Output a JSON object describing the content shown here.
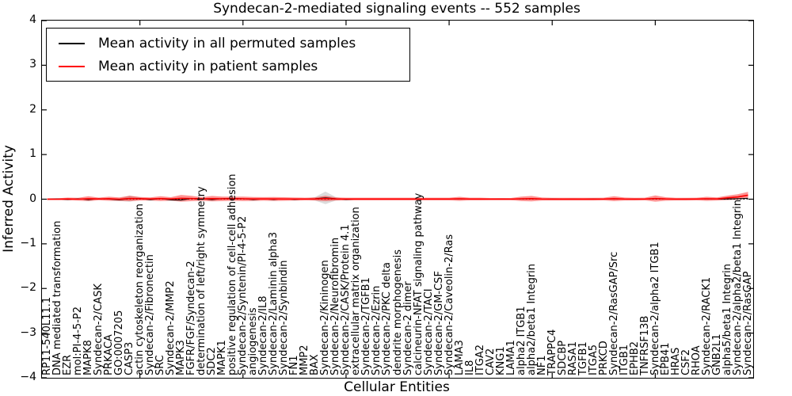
{
  "title": "Syndecan-2-mediated signaling events -- 552 samples",
  "axes": {
    "xlabel": "Cellular Entities",
    "ylabel": "Inferred Activity",
    "yticks": [
      "4",
      "3",
      "2",
      "1",
      "0",
      "−1",
      "−2",
      "−3",
      "−4"
    ],
    "ylim": [
      -4,
      4
    ]
  },
  "legend": {
    "items": [
      {
        "label": "Mean activity in all permuted samples",
        "color": "#000000"
      },
      {
        "label": "Mean activity in patient samples",
        "color": "#ff0000"
      }
    ]
  },
  "chart_data": {
    "type": "line",
    "title": "Syndecan-2-mediated signaling events -- 552 samples",
    "xlabel": "Cellular Entities",
    "ylabel": "Inferred Activity",
    "ylim": [
      -4,
      4
    ],
    "grid": false,
    "zero_line": "dotted",
    "legend_position": "upper left",
    "categories": [
      "RP11-540L11.1",
      "DNA mediated transformation",
      "EZR",
      "mol:PI-4-5-P2",
      "MAPK8",
      "Syndecan-2/CASK",
      "PRKACA",
      "GO:0007205",
      "CASP3",
      "actin cytoskeleton reorganization",
      "Syndecan-2/Fibronectin",
      "SRC",
      "Syndecan-2/MMP2",
      "MAPK3",
      "FGFR/FGF/Syndecan-2",
      "determination of left/right symmetry",
      "SDC2",
      "MAPK1",
      "positive regulation of cell-cell adhesion",
      "Syndecan-2/Syntenin/PI-4-5-P2",
      "angiogenesis",
      "Syndecan-2/IL8",
      "Syndecan-2/Laminin alpha3",
      "Syndecan-2/Synbindin",
      "FN1",
      "MMP2",
      "BAX",
      "Syndecan-2/Kininogen",
      "Syndecan-2/Neurofibromin",
      "Syndecan-2/CASK/Protein 4.1",
      "extracellular matrix organization",
      "Syndecan-2/TGFB1",
      "Syndecan-2/Ezrin",
      "Syndecan-2/PKC delta",
      "dendrite morphogenesis",
      "Syndecan-2 dimer",
      "calcineurin-NFAT signaling pathway",
      "Syndecan-2/TACI",
      "Syndecan-2/GM-CSF",
      "Syndecan-2/Caveolin-2/Ras",
      "LAMA3",
      "IL8",
      "ITGA2",
      "CAV2",
      "KNG1",
      "LAMA1",
      "alpha2 ITGB1",
      "alpha2/beta1 Integrin",
      "NF1",
      "TRAPPC4",
      "SDCBP",
      "RASA1",
      "TGFB1",
      "ITGA5",
      "PRKCD",
      "Syndecan-2/RasGAP/Src",
      "ITGB1",
      "EPHB2",
      "TNFRSF13B",
      "Syndecan-2/alpha2 ITGB1",
      "EPB41",
      "HRAS",
      "CSF2",
      "RHOA",
      "Syndecan-2/RACK1",
      "GNB2L1",
      "alpha5/beta1 Integrin",
      "Syndecan-2/alpha2/beta1 Integrin",
      "Syndecan-2/RasGAP"
    ],
    "series": [
      {
        "name": "Mean activity in all permuted samples",
        "color": "#000000",
        "values": [
          0,
          0.005,
          -0.005,
          0.008,
          -0.01,
          0.01,
          0,
          -0.012,
          0.012,
          0.015,
          -0.01,
          0.012,
          -0.015,
          -0.02,
          0.015,
          0.01,
          -0.01,
          0.012,
          0.018,
          0.01,
          -0.008,
          0.006,
          -0.006,
          0.008,
          -0.005,
          0.005,
          0.01,
          0.03,
          0.01,
          -0.005,
          0.004,
          0,
          0.004,
          0,
          0.003,
          0,
          0.003,
          0,
          0.002,
          0,
          0.005,
          0,
          0.003,
          0,
          0.002,
          0,
          0.005,
          0.008,
          0,
          0.003,
          0,
          0.002,
          0,
          0.003,
          0,
          0.006,
          0,
          0.002,
          0,
          0.01,
          0.004,
          0,
          0.002,
          0,
          0.005,
          0.002,
          0.005,
          0.01,
          0.02
        ]
      },
      {
        "name": "Mean activity in patient samples",
        "color": "#ff0000",
        "values": [
          0,
          0,
          0.005,
          0,
          0.01,
          0.005,
          0.01,
          0,
          0.015,
          0.01,
          0.005,
          0.012,
          0.005,
          0.02,
          0.015,
          0.005,
          0.012,
          0.008,
          0.01,
          0.008,
          0.005,
          0.006,
          0.005,
          0.004,
          0.003,
          0.003,
          0.005,
          0.015,
          0.005,
          0.003,
          0.003,
          0.003,
          0.003,
          0.003,
          0.003,
          0.003,
          0.003,
          0.003,
          0.003,
          0.003,
          0.008,
          0.003,
          0.003,
          0.002,
          0.002,
          0.002,
          0.008,
          0.012,
          0.003,
          0.002,
          0.002,
          0.002,
          0.002,
          0.002,
          0.003,
          0.01,
          0.003,
          0.002,
          0.003,
          0.015,
          0.005,
          0.002,
          0.002,
          0.003,
          0.008,
          0.005,
          0.03,
          0.05,
          0.09
        ]
      }
    ],
    "bands": [
      {
        "name": "permuted samples spread",
        "color": "rgba(128,128,128,0.28)",
        "half_widths": [
          0,
          0,
          0,
          0,
          0,
          0,
          0,
          0.025,
          0.07,
          0.025,
          0,
          0,
          0,
          0,
          0,
          0,
          0,
          0,
          0,
          0,
          0,
          0,
          0,
          0,
          0,
          0,
          0.04,
          0.14,
          0.04,
          0,
          0,
          0,
          0,
          0,
          0,
          0,
          0,
          0,
          0,
          0,
          0,
          0,
          0,
          0,
          0,
          0,
          0,
          0,
          0,
          0,
          0,
          0,
          0,
          0,
          0,
          0,
          0,
          0,
          0,
          0,
          0,
          0,
          0,
          0,
          0,
          0,
          0,
          0,
          0
        ]
      },
      {
        "name": "patient samples spread",
        "color": "rgba(255,0,0,0.42)",
        "half_widths": [
          0.02,
          0.02,
          0.03,
          0.03,
          0.055,
          0.03,
          0.045,
          0.04,
          0.06,
          0.04,
          0.035,
          0.055,
          0.04,
          0.075,
          0.06,
          0.04,
          0.06,
          0.05,
          0.045,
          0.05,
          0.045,
          0.04,
          0.045,
          0.04,
          0.035,
          0.03,
          0.035,
          0.06,
          0.035,
          0.03,
          0.03,
          0.03,
          0.03,
          0.03,
          0.03,
          0.03,
          0.03,
          0.03,
          0.03,
          0.03,
          0.045,
          0.03,
          0.03,
          0.025,
          0.025,
          0.025,
          0.05,
          0.06,
          0.035,
          0.03,
          0.03,
          0.03,
          0.03,
          0.03,
          0.03,
          0.055,
          0.035,
          0.03,
          0.03,
          0.07,
          0.04,
          0.03,
          0.03,
          0.03,
          0.045,
          0.035,
          0.05,
          0.06,
          0.075
        ]
      }
    ],
    "x_major_tick_indices": [
      9,
      19,
      29,
      39,
      49,
      59
    ]
  }
}
